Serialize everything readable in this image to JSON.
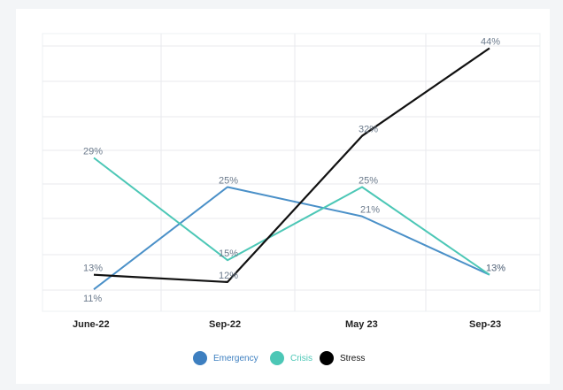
{
  "chart_data": {
    "type": "line",
    "categories": [
      "June-22",
      "Sep-22",
      "May 23",
      "Sep-23"
    ],
    "series": [
      {
        "name": "Emergency",
        "color": "#4a90c8",
        "values": [
          11,
          25,
          21,
          13
        ],
        "labels": [
          "11%",
          "25%",
          "21%",
          "13%"
        ]
      },
      {
        "name": "Crisis",
        "color": "#4cc7b6",
        "values": [
          29,
          15,
          25,
          13
        ],
        "labels": [
          "29%",
          "15%",
          "25%",
          "13%"
        ]
      },
      {
        "name": "Stress",
        "color": "#111111",
        "values": [
          13,
          12,
          32,
          44
        ],
        "labels": [
          "13%",
          "12%",
          "32%",
          "44%"
        ]
      }
    ],
    "ylim": [
      8,
      46
    ],
    "grid": true,
    "legend": "bottom-center",
    "marker_colors": {
      "Emergency": "#3d7fc0",
      "Crisis": "#4cc7b6",
      "Stress": "#000000"
    },
    "legend_text_colors": {
      "Emergency": "#3d7fc0",
      "Crisis": "#4cc7b6",
      "Stress": "#111111"
    }
  }
}
